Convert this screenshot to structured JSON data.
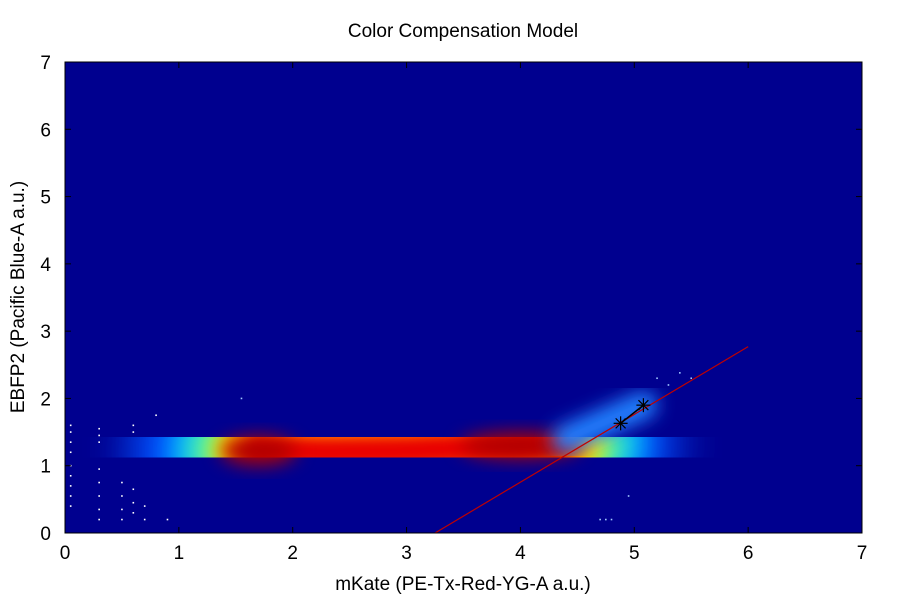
{
  "chart_data": {
    "type": "heatmap",
    "title": "Color Compensation Model",
    "xlabel": "mKate (PE-Tx-Red-YG-A a.u.)",
    "ylabel": "EBFP2 (Pacific Blue-A a.u.)",
    "xlim": [
      0,
      7
    ],
    "ylim": [
      0,
      7
    ],
    "x_ticks": [
      "0",
      "1",
      "2",
      "3",
      "4",
      "5",
      "6",
      "7"
    ],
    "y_ticks": [
      "0",
      "1",
      "2",
      "3",
      "4",
      "5",
      "6",
      "7"
    ],
    "colormap": "jet",
    "background_color": "#00008f",
    "density_ridge": [
      {
        "x": 1.7,
        "y": 1.22
      },
      {
        "x": 2.3,
        "y": 1.2
      },
      {
        "x": 3.0,
        "y": 1.22
      },
      {
        "x": 3.5,
        "y": 1.26
      },
      {
        "x": 4.0,
        "y": 1.3
      },
      {
        "x": 4.4,
        "y": 1.35
      }
    ],
    "fit_line": {
      "x": [
        3.25,
        6.0
      ],
      "y": [
        0.0,
        2.77
      ],
      "color": "#c00000"
    },
    "markers": [
      {
        "x": 4.88,
        "y": 1.63,
        "symbol": "asterisk"
      },
      {
        "x": 5.08,
        "y": 1.9,
        "symbol": "asterisk"
      }
    ],
    "grid": false,
    "legend": "none"
  }
}
